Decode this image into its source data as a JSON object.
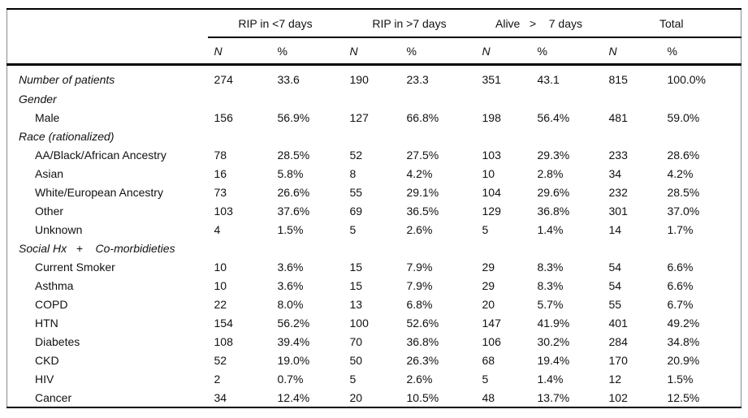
{
  "table": {
    "col_groups": [
      {
        "label": "RIP in <7 days"
      },
      {
        "label": "RIP in >7 days"
      },
      {
        "label": "Alive   >    7 days"
      },
      {
        "label": "Total"
      }
    ],
    "subheaders": [
      "N",
      "%",
      "N",
      "%",
      "N",
      "%",
      "N",
      "%"
    ],
    "rows": [
      {
        "label": "Number of patients",
        "style": "section-with-data",
        "values": [
          "274",
          "33.6",
          "190",
          "23.3",
          "351",
          "43.1",
          "815",
          "100.0%"
        ]
      },
      {
        "label": "Gender",
        "style": "section",
        "values": [
          "",
          "",
          "",
          "",
          "",
          "",
          "",
          ""
        ]
      },
      {
        "label": "Male",
        "style": "item",
        "values": [
          "156",
          "56.9%",
          "127",
          "66.8%",
          "198",
          "56.4%",
          "481",
          "59.0%"
        ]
      },
      {
        "label": "Race (rationalized)",
        "style": "section",
        "values": [
          "",
          "",
          "",
          "",
          "",
          "",
          "",
          ""
        ]
      },
      {
        "label": "AA/Black/African Ancestry",
        "style": "item",
        "values": [
          "78",
          "28.5%",
          "52",
          "27.5%",
          "103",
          "29.3%",
          "233",
          "28.6%"
        ]
      },
      {
        "label": "Asian",
        "style": "item",
        "values": [
          "16",
          "5.8%",
          "8",
          "4.2%",
          "10",
          "2.8%",
          "34",
          "4.2%"
        ]
      },
      {
        "label": "White/European Ancestry",
        "style": "item",
        "values": [
          "73",
          "26.6%",
          "55",
          "29.1%",
          "104",
          "29.6%",
          "232",
          "28.5%"
        ]
      },
      {
        "label": "Other",
        "style": "item",
        "values": [
          "103",
          "37.6%",
          "69",
          "36.5%",
          "129",
          "36.8%",
          "301",
          "37.0%"
        ]
      },
      {
        "label": "Unknown",
        "style": "item",
        "values": [
          "4",
          "1.5%",
          "5",
          "2.6%",
          "5",
          "1.4%",
          "14",
          "1.7%"
        ]
      },
      {
        "label": "Social Hx   +    Co-morbidieties",
        "style": "section",
        "values": [
          "",
          "",
          "",
          "",
          "",
          "",
          "",
          ""
        ]
      },
      {
        "label": "Current Smoker",
        "style": "item",
        "values": [
          "10",
          "3.6%",
          "15",
          "7.9%",
          "29",
          "8.3%",
          "54",
          "6.6%"
        ]
      },
      {
        "label": "Asthma",
        "style": "item",
        "values": [
          "10",
          "3.6%",
          "15",
          "7.9%",
          "29",
          "8.3%",
          "54",
          "6.6%"
        ]
      },
      {
        "label": "COPD",
        "style": "item",
        "values": [
          "22",
          "8.0%",
          "13",
          "6.8%",
          "20",
          "5.7%",
          "55",
          "6.7%"
        ]
      },
      {
        "label": "HTN",
        "style": "item",
        "values": [
          "154",
          "56.2%",
          "100",
          "52.6%",
          "147",
          "41.9%",
          "401",
          "49.2%"
        ]
      },
      {
        "label": "Diabetes",
        "style": "item",
        "values": [
          "108",
          "39.4%",
          "70",
          "36.8%",
          "106",
          "30.2%",
          "284",
          "34.8%"
        ]
      },
      {
        "label": "CKD",
        "style": "item",
        "values": [
          "52",
          "19.0%",
          "50",
          "26.3%",
          "68",
          "19.4%",
          "170",
          "20.9%"
        ]
      },
      {
        "label": "HIV",
        "style": "item",
        "values": [
          "2",
          "0.7%",
          "5",
          "2.6%",
          "5",
          "1.4%",
          "12",
          "1.5%"
        ]
      },
      {
        "label": "Cancer",
        "style": "item",
        "values": [
          "34",
          "12.4%",
          "20",
          "10.5%",
          "48",
          "13.7%",
          "102",
          "12.5%"
        ]
      }
    ]
  }
}
